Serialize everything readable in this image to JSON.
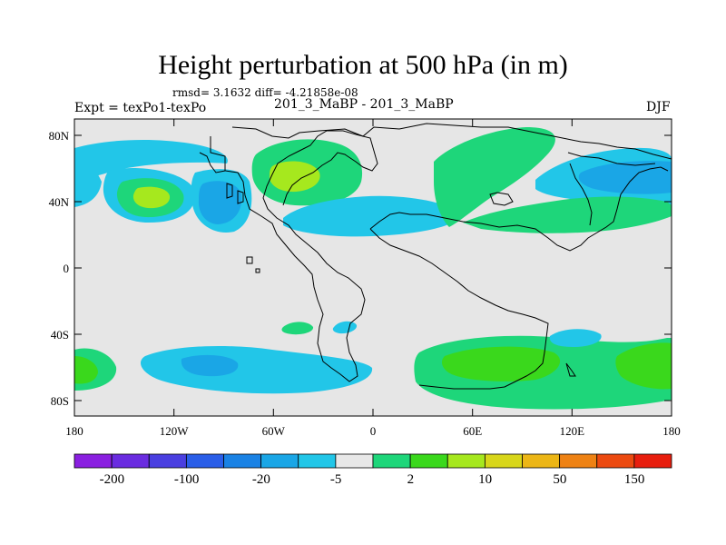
{
  "figure": {
    "title": "Height perturbation at 500 hPa (in m)",
    "stats": "rmsd= 3.1632  diff= -4.21858e-08",
    "experiment": "Expt = texPo1-texPo",
    "runs": "201_3_MaBP - 201_3_MaBP",
    "season": "DJF"
  },
  "axes": {
    "lat_ticks": [
      "80N",
      "40N",
      "0",
      "40S",
      "80S"
    ],
    "lon_ticks": [
      "180",
      "120W",
      "60W",
      "0",
      "60E",
      "120E",
      "180"
    ],
    "background_color": "#e6e6e6"
  },
  "colorbar": {
    "colors": [
      "#8a1fe0",
      "#6a2ce0",
      "#4a3fe0",
      "#2a5ee8",
      "#1a82e4",
      "#1aa6e6",
      "#22c6e8",
      "#e8e8e8",
      "#1ed67a",
      "#3ad81c",
      "#a6e81e",
      "#d8d61a",
      "#ecb616",
      "#ee8214",
      "#ec4a10",
      "#e81e0e"
    ],
    "labels": [
      "-200",
      "-100",
      "-20",
      "-5",
      "2",
      "10",
      "50",
      "150"
    ]
  },
  "regions": [
    {
      "color": "#22c6e8",
      "desc": "north pacific west band"
    },
    {
      "color": "#22c6e8",
      "desc": "north pacific blob"
    },
    {
      "color": "#1ed67a",
      "desc": "north pacific high"
    },
    {
      "color": "#a6e81e",
      "desc": "north pacific high core"
    },
    {
      "color": "#22c6e8",
      "desc": "north america low"
    },
    {
      "color": "#1aa6e6",
      "desc": "north america low core"
    },
    {
      "color": "#1ed67a",
      "desc": "north atlantic high"
    },
    {
      "color": "#a6e81e",
      "desc": "north atlantic high core"
    },
    {
      "color": "#22c6e8",
      "desc": "atlantic low band"
    },
    {
      "color": "#1ed67a",
      "desc": "eurasia high"
    },
    {
      "color": "#22c6e8",
      "desc": "siberia low"
    },
    {
      "color": "#1aa6e6",
      "desc": "siberia low core"
    },
    {
      "color": "#1ed67a",
      "desc": "asia high band"
    },
    {
      "color": "#22c6e8",
      "desc": "southern pacific low"
    },
    {
      "color": "#1aa6e6",
      "desc": "southern pacific low core"
    },
    {
      "color": "#1ed67a",
      "desc": "southern atlantic high"
    },
    {
      "color": "#3ad81c",
      "desc": "southern indian high"
    },
    {
      "color": "#1ed67a",
      "desc": "south pacific high east"
    },
    {
      "color": "#22c6e8",
      "desc": "small low indian"
    }
  ]
}
